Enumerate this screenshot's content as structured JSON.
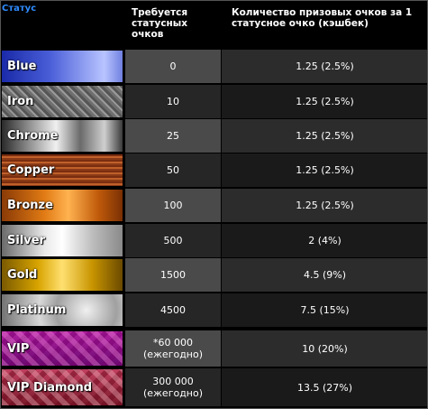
{
  "header": {
    "status": "Статус",
    "required": "Требуется статусных очков",
    "cashback": "Количество призовых очков за 1 статусное очко (кэшбек)"
  },
  "rows": [
    {
      "name": "Blue",
      "required": "0",
      "required_note": "",
      "cashback": "1.25 (2.5%)",
      "texture": "blue"
    },
    {
      "name": "Iron",
      "required": "10",
      "required_note": "",
      "cashback": "1.25 (2.5%)",
      "texture": "iron"
    },
    {
      "name": "Chrome",
      "required": "25",
      "required_note": "",
      "cashback": "1.25 (2.5%)",
      "texture": "chrome"
    },
    {
      "name": "Copper",
      "required": "50",
      "required_note": "",
      "cashback": "1.25 (2.5%)",
      "texture": "copper"
    },
    {
      "name": "Bronze",
      "required": "100",
      "required_note": "",
      "cashback": "1.25 (2.5%)",
      "texture": "bronze"
    },
    {
      "name": "Silver",
      "required": "500",
      "required_note": "",
      "cashback": "2 (4%)",
      "texture": "silver"
    },
    {
      "name": "Gold",
      "required": "1500",
      "required_note": "",
      "cashback": "4.5 (9%)",
      "texture": "gold"
    },
    {
      "name": "Platinum",
      "required": "4500",
      "required_note": "",
      "cashback": "7.5 (15%)",
      "texture": "platinum"
    },
    {
      "name": "VIP",
      "required": "*60 000",
      "required_note": "(ежегодно)",
      "cashback": "10 (20%)",
      "texture": "vip"
    },
    {
      "name": "VIP Diamond",
      "required": "300 000",
      "required_note": "(ежегодно)",
      "cashback": "13.5 (27%)",
      "texture": "vipd"
    }
  ]
}
